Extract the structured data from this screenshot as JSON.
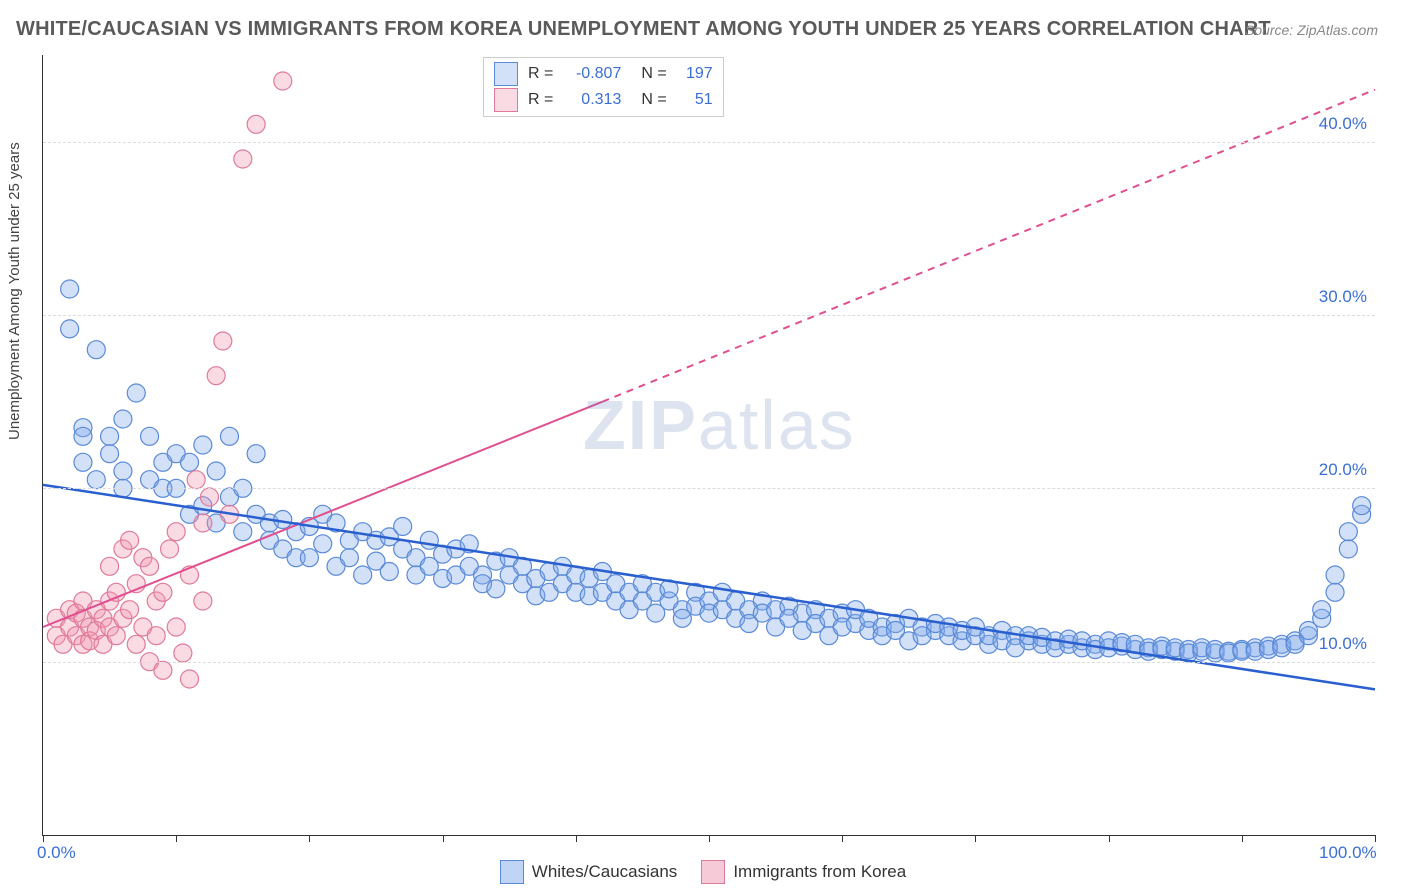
{
  "title": "WHITE/CAUCASIAN VS IMMIGRANTS FROM KOREA UNEMPLOYMENT AMONG YOUTH UNDER 25 YEARS CORRELATION CHART",
  "source": "Source: ZipAtlas.com",
  "ylabel": "Unemployment Among Youth under 25 years",
  "watermark_a": "ZIP",
  "watermark_b": "atlas",
  "chart": {
    "type": "scatter",
    "background_color": "#ffffff",
    "grid_color": "#dcdcdc",
    "axis_color": "#333333",
    "xlim": [
      0,
      100
    ],
    "ylim": [
      0,
      45
    ],
    "xtick_positions": [
      0,
      10,
      20,
      30,
      40,
      50,
      60,
      70,
      80,
      90,
      100
    ],
    "xtick_labels": {
      "0": "0.0%",
      "100": "100.0%"
    },
    "ytick_positions": [
      10,
      20,
      30,
      40
    ],
    "ytick_labels": {
      "10": "10.0%",
      "20": "20.0%",
      "30": "30.0%",
      "40": "40.0%"
    },
    "label_color": "#3b6fd6",
    "label_fontsize": 17,
    "marker_radius": 9,
    "marker_stroke_width": 1.2,
    "series": [
      {
        "name": "Whites/Caucasians",
        "fill": "rgba(130,170,235,0.35)",
        "stroke": "#5a8ad8",
        "R": "-0.807",
        "N": "197",
        "trend_color": "#2a5fd0",
        "trend_width": 2.5,
        "trend_x1": 0,
        "trend_y1": 20.2,
        "trend_x2_solid": 100,
        "trend_y2_solid": 8.4,
        "points": [
          [
            2,
            31.5
          ],
          [
            2,
            29.2
          ],
          [
            3,
            23.5
          ],
          [
            3,
            23.0
          ],
          [
            3,
            21.5
          ],
          [
            4,
            28.0
          ],
          [
            4,
            20.5
          ],
          [
            5,
            22.0
          ],
          [
            5,
            23.0
          ],
          [
            6,
            24.0
          ],
          [
            6,
            21.0
          ],
          [
            6,
            20.0
          ],
          [
            7,
            25.5
          ],
          [
            8,
            23.0
          ],
          [
            8,
            20.5
          ],
          [
            9,
            21.5
          ],
          [
            9,
            20.0
          ],
          [
            10,
            22.0
          ],
          [
            10,
            20.0
          ],
          [
            11,
            21.5
          ],
          [
            11,
            18.5
          ],
          [
            12,
            22.5
          ],
          [
            12,
            19.0
          ],
          [
            13,
            21.0
          ],
          [
            13,
            18.0
          ],
          [
            14,
            23.0
          ],
          [
            14,
            19.5
          ],
          [
            15,
            20.0
          ],
          [
            15,
            17.5
          ],
          [
            16,
            22.0
          ],
          [
            16,
            18.5
          ],
          [
            17,
            18.0
          ],
          [
            17,
            17.0
          ],
          [
            18,
            18.2
          ],
          [
            18,
            16.5
          ],
          [
            19,
            17.5
          ],
          [
            19,
            16.0
          ],
          [
            20,
            17.8
          ],
          [
            20,
            16.0
          ],
          [
            21,
            18.5
          ],
          [
            21,
            16.8
          ],
          [
            22,
            18.0
          ],
          [
            22,
            15.5
          ],
          [
            23,
            17.0
          ],
          [
            23,
            16.0
          ],
          [
            24,
            17.5
          ],
          [
            24,
            15.0
          ],
          [
            25,
            17.0
          ],
          [
            25,
            15.8
          ],
          [
            26,
            17.2
          ],
          [
            26,
            15.2
          ],
          [
            27,
            16.5
          ],
          [
            27,
            17.8
          ],
          [
            28,
            16.0
          ],
          [
            28,
            15.0
          ],
          [
            29,
            17.0
          ],
          [
            29,
            15.5
          ],
          [
            30,
            16.2
          ],
          [
            30,
            14.8
          ],
          [
            31,
            16.5
          ],
          [
            31,
            15.0
          ],
          [
            32,
            15.5
          ],
          [
            32,
            16.8
          ],
          [
            33,
            15.0
          ],
          [
            33,
            14.5
          ],
          [
            34,
            15.8
          ],
          [
            34,
            14.2
          ],
          [
            35,
            15.0
          ],
          [
            35,
            16.0
          ],
          [
            36,
            14.5
          ],
          [
            36,
            15.5
          ],
          [
            37,
            14.8
          ],
          [
            37,
            13.8
          ],
          [
            38,
            15.2
          ],
          [
            38,
            14.0
          ],
          [
            39,
            14.5
          ],
          [
            39,
            15.5
          ],
          [
            40,
            14.0
          ],
          [
            40,
            15.0
          ],
          [
            41,
            13.8
          ],
          [
            41,
            14.8
          ],
          [
            42,
            15.2
          ],
          [
            42,
            14.0
          ],
          [
            43,
            13.5
          ],
          [
            43,
            14.5
          ],
          [
            44,
            14.0
          ],
          [
            44,
            13.0
          ],
          [
            45,
            14.5
          ],
          [
            45,
            13.5
          ],
          [
            46,
            14.0
          ],
          [
            46,
            12.8
          ],
          [
            47,
            13.5
          ],
          [
            47,
            14.2
          ],
          [
            48,
            13.0
          ],
          [
            48,
            12.5
          ],
          [
            49,
            14.0
          ],
          [
            49,
            13.2
          ],
          [
            50,
            13.5
          ],
          [
            50,
            12.8
          ],
          [
            51,
            13.0
          ],
          [
            51,
            14.0
          ],
          [
            52,
            12.5
          ],
          [
            52,
            13.5
          ],
          [
            53,
            13.0
          ],
          [
            53,
            12.2
          ],
          [
            54,
            13.5
          ],
          [
            54,
            12.8
          ],
          [
            55,
            13.0
          ],
          [
            55,
            12.0
          ],
          [
            56,
            13.2
          ],
          [
            56,
            12.5
          ],
          [
            57,
            12.8
          ],
          [
            57,
            11.8
          ],
          [
            58,
            13.0
          ],
          [
            58,
            12.2
          ],
          [
            59,
            12.5
          ],
          [
            59,
            11.5
          ],
          [
            60,
            12.8
          ],
          [
            60,
            12.0
          ],
          [
            61,
            12.2
          ],
          [
            61,
            13.0
          ],
          [
            62,
            11.8
          ],
          [
            62,
            12.5
          ],
          [
            63,
            12.0
          ],
          [
            63,
            11.5
          ],
          [
            64,
            12.2
          ],
          [
            64,
            11.8
          ],
          [
            65,
            12.5
          ],
          [
            65,
            11.2
          ],
          [
            66,
            12.0
          ],
          [
            66,
            11.5
          ],
          [
            67,
            11.8
          ],
          [
            67,
            12.2
          ],
          [
            68,
            11.5
          ],
          [
            68,
            12.0
          ],
          [
            69,
            11.2
          ],
          [
            69,
            11.8
          ],
          [
            70,
            11.5
          ],
          [
            70,
            12.0
          ],
          [
            71,
            11.0
          ],
          [
            71,
            11.5
          ],
          [
            72,
            11.8
          ],
          [
            72,
            11.2
          ],
          [
            73,
            11.5
          ],
          [
            73,
            10.8
          ],
          [
            74,
            11.2
          ],
          [
            74,
            11.5
          ],
          [
            75,
            11.0
          ],
          [
            75,
            11.4
          ],
          [
            76,
            11.2
          ],
          [
            76,
            10.8
          ],
          [
            77,
            11.0
          ],
          [
            77,
            11.3
          ],
          [
            78,
            10.8
          ],
          [
            78,
            11.2
          ],
          [
            79,
            11.0
          ],
          [
            79,
            10.7
          ],
          [
            80,
            11.2
          ],
          [
            80,
            10.8
          ],
          [
            81,
            10.9
          ],
          [
            81,
            11.1
          ],
          [
            82,
            10.7
          ],
          [
            82,
            11.0
          ],
          [
            83,
            10.8
          ],
          [
            83,
            10.6
          ],
          [
            84,
            10.9
          ],
          [
            84,
            10.7
          ],
          [
            85,
            10.6
          ],
          [
            85,
            10.8
          ],
          [
            86,
            10.7
          ],
          [
            86,
            10.5
          ],
          [
            87,
            10.6
          ],
          [
            87,
            10.8
          ],
          [
            88,
            10.5
          ],
          [
            88,
            10.7
          ],
          [
            89,
            10.6
          ],
          [
            89,
            10.5
          ],
          [
            90,
            10.7
          ],
          [
            90,
            10.6
          ],
          [
            91,
            10.8
          ],
          [
            91,
            10.6
          ],
          [
            92,
            10.9
          ],
          [
            92,
            10.7
          ],
          [
            93,
            11.0
          ],
          [
            93,
            10.8
          ],
          [
            94,
            11.2
          ],
          [
            94,
            11.0
          ],
          [
            95,
            11.5
          ],
          [
            95,
            11.8
          ],
          [
            96,
            12.5
          ],
          [
            96,
            13.0
          ],
          [
            97,
            14.0
          ],
          [
            97,
            15.0
          ],
          [
            98,
            16.5
          ],
          [
            98,
            17.5
          ],
          [
            99,
            18.5
          ],
          [
            99,
            19.0
          ]
        ]
      },
      {
        "name": "Immigrants from Korea",
        "fill": "rgba(240,150,175,0.35)",
        "stroke": "#e07a9a",
        "R": "0.313",
        "N": "51",
        "trend_color": "#e05090",
        "trend_width": 2,
        "trend_x1": 0,
        "trend_y1": 12.0,
        "trend_x2_solid": 42,
        "trend_y2_solid": 25.0,
        "trend_x2_dash": 100,
        "trend_y2_dash": 43.0,
        "points": [
          [
            1,
            11.5
          ],
          [
            1,
            12.5
          ],
          [
            1.5,
            11.0
          ],
          [
            2,
            12.0
          ],
          [
            2,
            13.0
          ],
          [
            2.5,
            11.5
          ],
          [
            2.5,
            12.8
          ],
          [
            3,
            11.0
          ],
          [
            3,
            12.5
          ],
          [
            3,
            13.5
          ],
          [
            3.5,
            12.0
          ],
          [
            3.5,
            11.2
          ],
          [
            4,
            13.0
          ],
          [
            4,
            11.8
          ],
          [
            4.5,
            12.5
          ],
          [
            4.5,
            11.0
          ],
          [
            5,
            13.5
          ],
          [
            5,
            12.0
          ],
          [
            5,
            15.5
          ],
          [
            5.5,
            14.0
          ],
          [
            5.5,
            11.5
          ],
          [
            6,
            12.5
          ],
          [
            6,
            16.5
          ],
          [
            6.5,
            13.0
          ],
          [
            6.5,
            17.0
          ],
          [
            7,
            11.0
          ],
          [
            7,
            14.5
          ],
          [
            7.5,
            12.0
          ],
          [
            7.5,
            16.0
          ],
          [
            8,
            10.0
          ],
          [
            8,
            15.5
          ],
          [
            8.5,
            13.5
          ],
          [
            8.5,
            11.5
          ],
          [
            9,
            9.5
          ],
          [
            9,
            14.0
          ],
          [
            9.5,
            16.5
          ],
          [
            10,
            12.0
          ],
          [
            10,
            17.5
          ],
          [
            10.5,
            10.5
          ],
          [
            11,
            9.0
          ],
          [
            11,
            15.0
          ],
          [
            11.5,
            20.5
          ],
          [
            12,
            13.5
          ],
          [
            12,
            18.0
          ],
          [
            12.5,
            19.5
          ],
          [
            13,
            26.5
          ],
          [
            13.5,
            28.5
          ],
          [
            14,
            18.5
          ],
          [
            15,
            39.0
          ],
          [
            16,
            41.0
          ],
          [
            18,
            43.5
          ]
        ]
      }
    ]
  },
  "bottom_legend": [
    {
      "label": "Whites/Caucasians",
      "fill": "rgba(130,170,235,0.5)",
      "stroke": "#5a8ad8"
    },
    {
      "label": "Immigrants from Korea",
      "fill": "rgba(240,150,175,0.5)",
      "stroke": "#e07a9a"
    }
  ]
}
